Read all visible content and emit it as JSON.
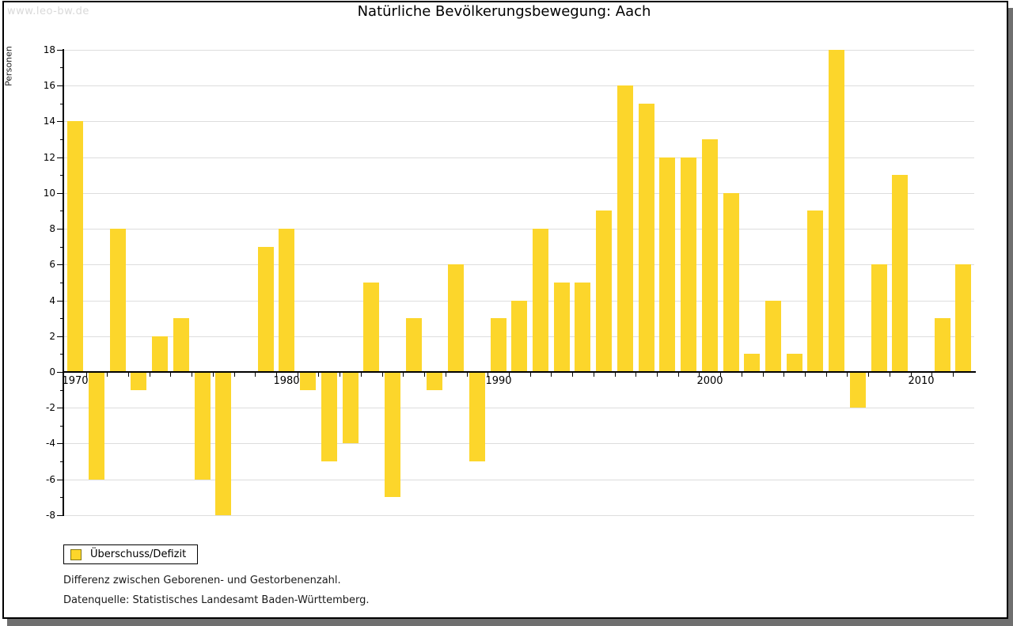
{
  "watermark": "www.leo-bw.de",
  "title": "Natürliche Bevölkerungsbewegung: Aach",
  "legend": {
    "label": "Überschuss/Defizit"
  },
  "footnotes": [
    "Differenz zwischen Geborenen- und Gestorbenenzahl.",
    "Datenquelle: Statistisches Landesamt Baden-Württemberg."
  ],
  "chart_data": {
    "type": "bar",
    "title": "Natürliche Bevölkerungsbewegung: Aach",
    "xlabel": "",
    "ylabel": "Personen",
    "categories": [
      1970,
      1971,
      1972,
      1973,
      1974,
      1975,
      1976,
      1977,
      1978,
      1979,
      1980,
      1981,
      1982,
      1983,
      1984,
      1985,
      1986,
      1987,
      1988,
      1989,
      1990,
      1991,
      1992,
      1993,
      1994,
      1995,
      1996,
      1997,
      1998,
      1999,
      2000,
      2001,
      2002,
      2003,
      2004,
      2005,
      2006,
      2007,
      2008,
      2009,
      2010,
      2011,
      2012
    ],
    "values": [
      14,
      -6,
      8,
      -1,
      2,
      3,
      -6,
      -8,
      0,
      7,
      8,
      -1,
      -5,
      -4,
      5,
      -7,
      3,
      -1,
      6,
      -5,
      3,
      4,
      8,
      5,
      5,
      9,
      16,
      15,
      12,
      12,
      13,
      10,
      1,
      4,
      1,
      9,
      18,
      -2,
      6,
      11,
      0,
      3,
      6
    ],
    "series_name": "Überschuss/Defizit",
    "ylim": [
      -8,
      18
    ],
    "ytick_step": 2,
    "xticks_labeled": [
      1970,
      1980,
      1990,
      2000,
      2010
    ],
    "grid": true,
    "legend_position": "bottom-left",
    "bar_color": "#fcd62b",
    "grid_color": "#dddddd",
    "axis_color": "#000000"
  }
}
